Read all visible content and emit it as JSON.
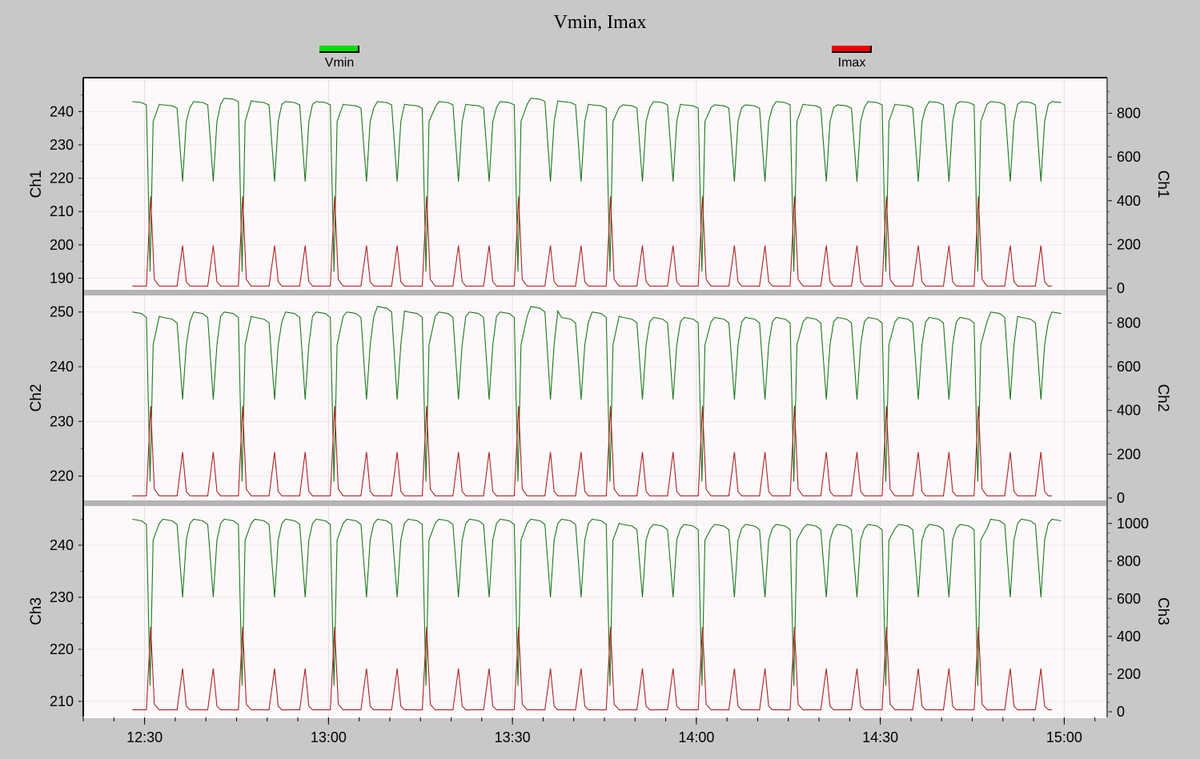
{
  "title": "Vmin, Imax",
  "legend": [
    {
      "name": "Vmin",
      "color": "#00dd00"
    },
    {
      "name": "Imax",
      "color": "#e00000"
    }
  ],
  "chart_data": {
    "type": "line",
    "title": "Vmin, Imax",
    "x_ticks": [
      "12:30",
      "13:00",
      "13:30",
      "14:00",
      "14:30",
      "15:00"
    ],
    "x_range": [
      "12:20",
      "15:07"
    ],
    "series_colors": {
      "Vmin": "#1a7a1a",
      "Imax": "#b02020"
    },
    "grid": true,
    "panels": [
      {
        "name": "Ch1",
        "left_label": "Ch1",
        "right_label": "Ch1",
        "left_ticks": [
          190,
          200,
          210,
          220,
          230,
          240
        ],
        "right_ticks": [
          0,
          200,
          400,
          600,
          800
        ],
        "left_range": [
          187,
          248
        ],
        "right_range": [
          0,
          930
        ],
        "vmin": {
          "base": [
            243,
            242,
            243,
            244,
            243,
            243,
            243,
            242,
            243,
            242,
            243,
            242,
            243,
            244,
            243,
            242,
            242,
            243,
            242,
            242,
            242,
            243,
            242,
            242,
            243,
            242,
            243,
            243,
            243,
            243,
            243,
            243
          ],
          "end": 243,
          "dip_lo": 219,
          "half": 237,
          "big_lo": 192
        },
        "imax": {
          "base": 10,
          "big": 420,
          "small": 195
        }
      },
      {
        "name": "Ch2",
        "left_label": "Ch2",
        "right_label": "Ch2",
        "left_ticks": [
          220,
          230,
          240,
          250
        ],
        "right_ticks": [
          0,
          200,
          400,
          600,
          800
        ],
        "left_range": [
          216,
          252
        ],
        "right_range": [
          0,
          900
        ],
        "vmin": {
          "base": [
            250,
            249,
            250,
            250,
            249,
            250,
            250,
            250,
            251,
            250,
            250,
            250,
            250,
            251,
            249,
            250,
            249,
            249,
            249,
            249,
            249,
            249,
            249,
            249,
            249,
            249,
            249,
            249,
            250,
            249,
            250,
            250
          ],
          "end": 249,
          "dip_lo": 234,
          "half": 244,
          "big_lo": 219
        },
        "imax": {
          "base": 10,
          "big": 420,
          "small": 210
        }
      },
      {
        "name": "Ch3",
        "left_label": "Ch3",
        "right_label": "Ch3",
        "left_ticks": [
          210,
          220,
          230,
          240
        ],
        "right_ticks": [
          0,
          200,
          400,
          600,
          800,
          1000
        ],
        "left_range": [
          208,
          246
        ],
        "right_range": [
          0,
          1050
        ],
        "vmin": {
          "base": [
            245,
            245,
            245,
            245,
            245,
            245,
            245,
            245,
            245,
            245,
            245,
            245,
            245,
            245,
            245,
            245,
            244,
            244,
            244,
            244,
            244,
            244,
            244,
            244,
            244,
            244,
            244,
            244,
            245,
            245,
            245,
            245
          ],
          "end": 245,
          "dip_lo": 230,
          "half": 241,
          "big_lo": 213
        },
        "imax": {
          "base": 10,
          "big": 450,
          "small": 230
        }
      }
    ]
  }
}
